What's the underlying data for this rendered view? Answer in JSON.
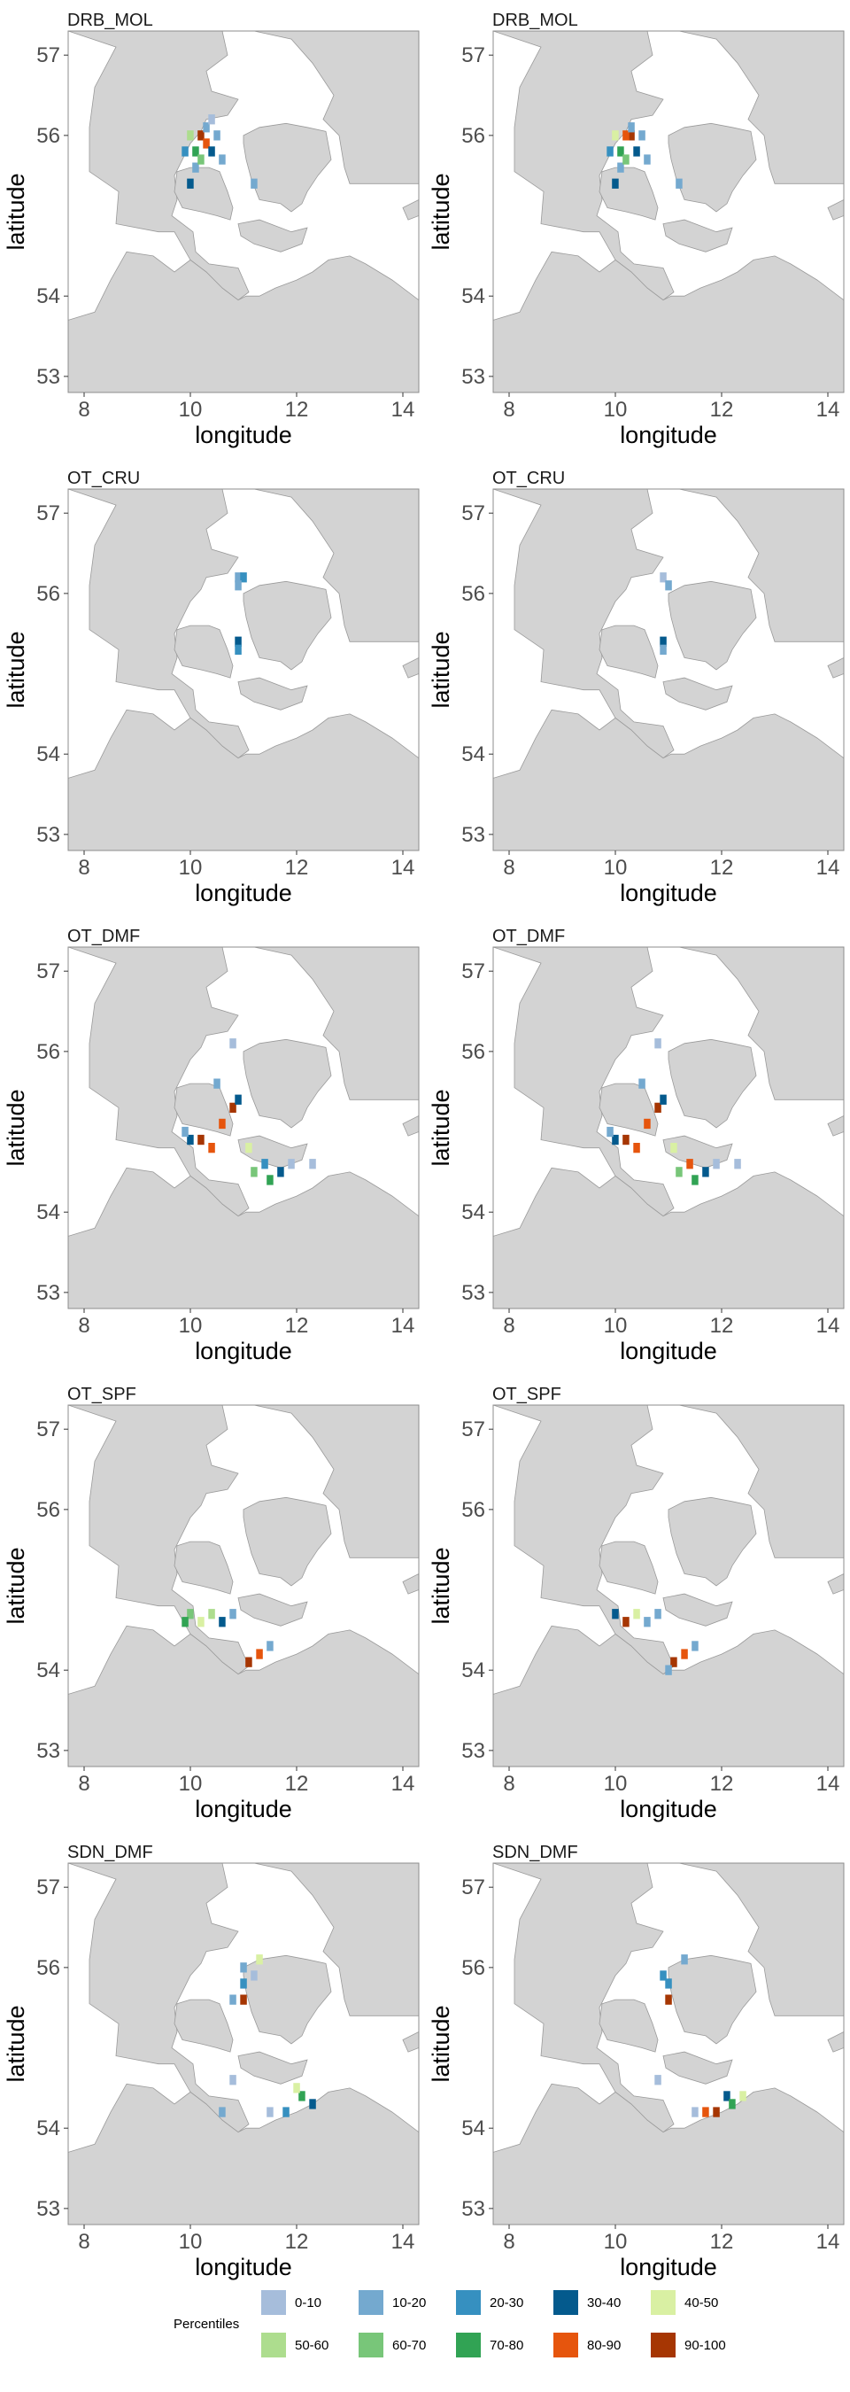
{
  "map": {
    "xlabel": "longitude",
    "ylabel": "latitude",
    "x_ticks": [
      "8",
      "10",
      "12",
      "14"
    ],
    "y_ticks": [
      "53",
      "54",
      "56",
      "57"
    ],
    "x_range": [
      7.7,
      14.3
    ],
    "y_range": [
      52.8,
      57.3
    ],
    "land_color": "#d3d3d3",
    "sea_color": "#ffffff"
  },
  "panels": [
    {
      "title": "DRB_MOL"
    },
    {
      "title": "DRB_MOL"
    },
    {
      "title": "OT_CRU"
    },
    {
      "title": "OT_CRU"
    },
    {
      "title": "OT_DMF"
    },
    {
      "title": "OT_DMF"
    },
    {
      "title": "OT_SPF"
    },
    {
      "title": "OT_SPF"
    },
    {
      "title": "SDN_DMF"
    },
    {
      "title": "SDN_DMF"
    }
  ],
  "legend": {
    "title": "Percentiles",
    "items": [
      {
        "label": "0-10",
        "color": "#a6bddb"
      },
      {
        "label": "10-20",
        "color": "#74a9cf"
      },
      {
        "label": "20-30",
        "color": "#3690c0"
      },
      {
        "label": "30-40",
        "color": "#045a8d"
      },
      {
        "label": "40-50",
        "color": "#d9f0a3"
      },
      {
        "label": "50-60",
        "color": "#addd8e"
      },
      {
        "label": "60-70",
        "color": "#78c679"
      },
      {
        "label": "70-80",
        "color": "#31a354"
      },
      {
        "label": "80-90",
        "color": "#e6550d"
      },
      {
        "label": "90-100",
        "color": "#a63603"
      }
    ]
  },
  "chart_data": {
    "type": "heatmap",
    "xlabel": "longitude",
    "ylabel": "latitude",
    "xlim": [
      7.7,
      14.3
    ],
    "ylim": [
      52.8,
      57.3
    ],
    "categories": [
      "0-10",
      "10-20",
      "20-30",
      "30-40",
      "40-50",
      "50-60",
      "60-70",
      "70-80",
      "80-90",
      "90-100"
    ],
    "cell_size_deg": [
      0.125,
      0.125
    ],
    "panels": [
      {
        "metier": "DRB_MOL",
        "cells": [
          [
            10.2,
            56.0,
            9
          ],
          [
            10.3,
            55.9,
            8
          ],
          [
            10.1,
            55.8,
            7
          ],
          [
            10.4,
            55.8,
            3
          ],
          [
            10.0,
            56.0,
            5
          ],
          [
            10.3,
            56.1,
            1
          ],
          [
            10.5,
            56.0,
            1
          ],
          [
            9.9,
            55.8,
            2
          ],
          [
            10.1,
            55.6,
            1
          ],
          [
            10.0,
            55.4,
            3
          ],
          [
            10.6,
            55.7,
            1
          ],
          [
            11.2,
            55.4,
            1
          ],
          [
            10.4,
            56.2,
            0
          ],
          [
            10.2,
            55.7,
            6
          ]
        ]
      },
      {
        "metier": "DRB_MOL",
        "cells": [
          [
            10.3,
            56.0,
            9
          ],
          [
            10.2,
            56.0,
            8
          ],
          [
            10.1,
            55.8,
            7
          ],
          [
            10.4,
            55.8,
            3
          ],
          [
            10.0,
            56.0,
            4
          ],
          [
            10.3,
            56.1,
            1
          ],
          [
            10.5,
            56.0,
            1
          ],
          [
            9.9,
            55.8,
            2
          ],
          [
            10.1,
            55.6,
            1
          ],
          [
            10.0,
            55.4,
            3
          ],
          [
            10.6,
            55.7,
            1
          ],
          [
            11.2,
            55.4,
            1
          ],
          [
            10.2,
            55.7,
            6
          ]
        ]
      },
      {
        "metier": "OT_CRU",
        "cells": [
          [
            10.9,
            56.2,
            1
          ],
          [
            11.0,
            56.2,
            2
          ],
          [
            10.9,
            56.1,
            1
          ],
          [
            10.9,
            55.4,
            3
          ],
          [
            10.9,
            55.3,
            2
          ]
        ]
      },
      {
        "metier": "OT_CRU",
        "cells": [
          [
            10.9,
            56.2,
            0
          ],
          [
            11.0,
            56.1,
            1
          ],
          [
            10.9,
            55.4,
            3
          ],
          [
            10.9,
            55.3,
            1
          ]
        ]
      },
      {
        "metier": "OT_DMF",
        "cells": [
          [
            10.8,
            55.3,
            9
          ],
          [
            10.6,
            55.1,
            8
          ],
          [
            10.2,
            54.9,
            9
          ],
          [
            10.4,
            54.8,
            8
          ],
          [
            10.0,
            54.9,
            3
          ],
          [
            11.2,
            54.5,
            6
          ],
          [
            11.5,
            54.4,
            7
          ],
          [
            11.4,
            54.6,
            2
          ],
          [
            11.7,
            54.5,
            3
          ],
          [
            10.9,
            55.4,
            3
          ],
          [
            10.8,
            56.1,
            0
          ],
          [
            10.5,
            55.6,
            1
          ],
          [
            11.9,
            54.6,
            0
          ],
          [
            12.3,
            54.6,
            0
          ],
          [
            9.9,
            55.0,
            1
          ],
          [
            11.1,
            54.8,
            4
          ]
        ]
      },
      {
        "metier": "OT_DMF",
        "cells": [
          [
            10.8,
            55.3,
            9
          ],
          [
            10.6,
            55.1,
            8
          ],
          [
            10.2,
            54.9,
            9
          ],
          [
            10.4,
            54.8,
            8
          ],
          [
            10.0,
            54.9,
            3
          ],
          [
            11.2,
            54.5,
            6
          ],
          [
            11.5,
            54.4,
            7
          ],
          [
            11.4,
            54.6,
            8
          ],
          [
            11.7,
            54.5,
            3
          ],
          [
            10.9,
            55.4,
            3
          ],
          [
            10.8,
            56.1,
            0
          ],
          [
            10.5,
            55.6,
            1
          ],
          [
            11.9,
            54.6,
            0
          ],
          [
            12.3,
            54.6,
            0
          ],
          [
            9.9,
            55.0,
            1
          ],
          [
            11.1,
            54.8,
            4
          ]
        ]
      },
      {
        "metier": "OT_SPF",
        "cells": [
          [
            10.0,
            54.7,
            6
          ],
          [
            10.2,
            54.6,
            4
          ],
          [
            10.4,
            54.7,
            5
          ],
          [
            10.6,
            54.6,
            3
          ],
          [
            11.1,
            54.1,
            9
          ],
          [
            11.3,
            54.2,
            8
          ],
          [
            11.5,
            54.3,
            1
          ],
          [
            10.8,
            54.7,
            1
          ],
          [
            9.9,
            54.6,
            7
          ]
        ]
      },
      {
        "metier": "OT_SPF",
        "cells": [
          [
            10.0,
            54.7,
            3
          ],
          [
            10.2,
            54.6,
            9
          ],
          [
            10.4,
            54.7,
            4
          ],
          [
            10.6,
            54.6,
            1
          ],
          [
            11.1,
            54.1,
            9
          ],
          [
            11.3,
            54.2,
            8
          ],
          [
            11.5,
            54.3,
            1
          ],
          [
            10.8,
            54.7,
            1
          ],
          [
            11.0,
            54.0,
            1
          ]
        ]
      },
      {
        "metier": "SDN_DMF",
        "cells": [
          [
            11.0,
            55.6,
            9
          ],
          [
            11.0,
            55.8,
            2
          ],
          [
            11.2,
            55.9,
            0
          ],
          [
            11.3,
            56.1,
            4
          ],
          [
            11.0,
            56.0,
            1
          ],
          [
            10.8,
            55.6,
            1
          ],
          [
            12.1,
            54.4,
            7
          ],
          [
            12.3,
            54.3,
            3
          ],
          [
            11.8,
            54.2,
            2
          ],
          [
            12.0,
            54.5,
            4
          ],
          [
            11.5,
            54.2,
            0
          ],
          [
            10.8,
            54.6,
            0
          ],
          [
            10.6,
            54.2,
            1
          ]
        ]
      },
      {
        "metier": "SDN_DMF",
        "cells": [
          [
            11.0,
            55.6,
            9
          ],
          [
            11.0,
            55.8,
            2
          ],
          [
            11.3,
            56.1,
            1
          ],
          [
            10.9,
            55.9,
            2
          ],
          [
            12.1,
            54.4,
            3
          ],
          [
            11.9,
            54.2,
            9
          ],
          [
            12.2,
            54.3,
            7
          ],
          [
            11.7,
            54.2,
            8
          ],
          [
            12.4,
            54.4,
            4
          ],
          [
            11.5,
            54.2,
            0
          ],
          [
            10.8,
            54.6,
            0
          ]
        ]
      }
    ]
  }
}
